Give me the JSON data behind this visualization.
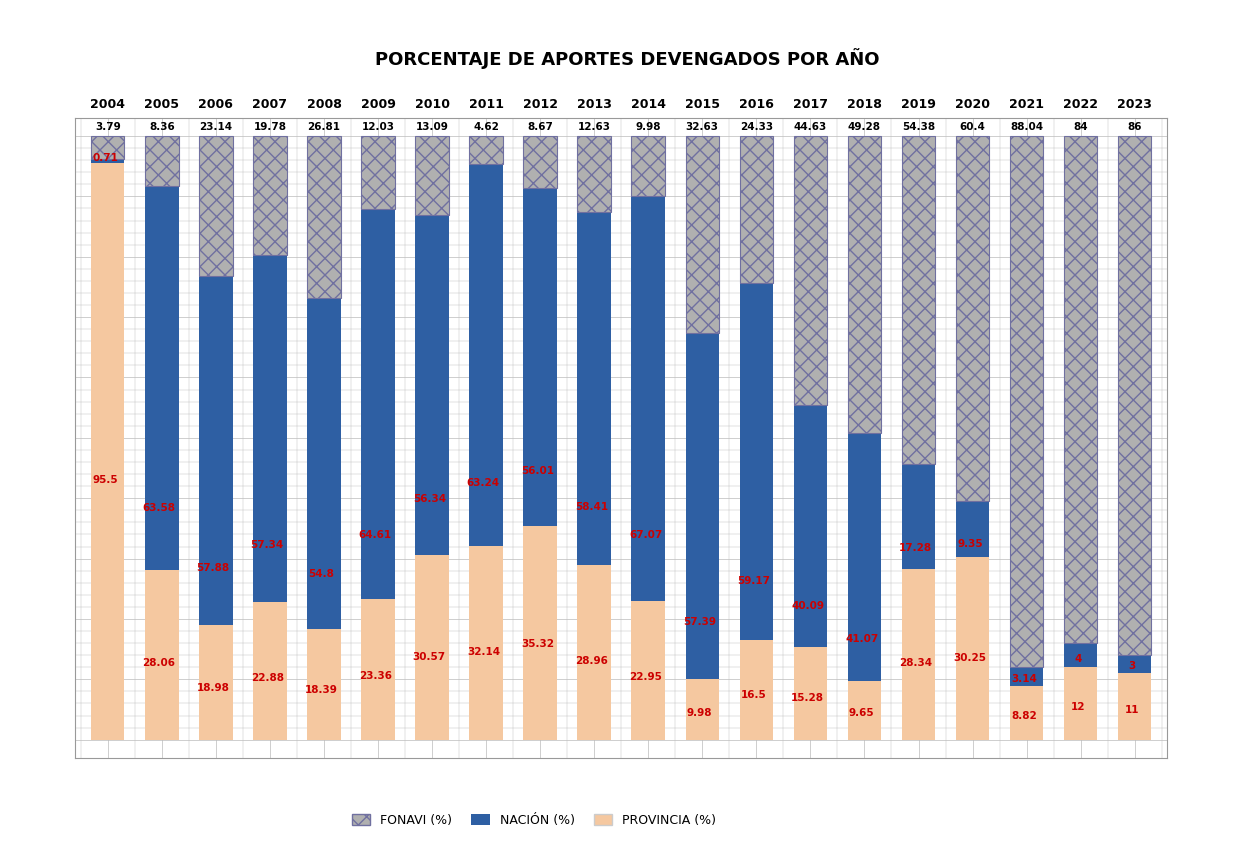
{
  "title": "PORCENTAJE DE APORTES DEVENGADOS POR AÑO",
  "years": [
    2004,
    2005,
    2006,
    2007,
    2008,
    2009,
    2010,
    2011,
    2012,
    2013,
    2014,
    2015,
    2016,
    2017,
    2018,
    2019,
    2020,
    2021,
    2022,
    2023
  ],
  "fonavi": [
    3.79,
    8.36,
    23.14,
    19.78,
    26.81,
    12.03,
    13.09,
    4.62,
    8.67,
    12.63,
    9.98,
    32.63,
    24.33,
    44.63,
    49.28,
    54.38,
    60.4,
    88.04,
    84.0,
    86.0
  ],
  "nacion": [
    0.71,
    63.58,
    57.88,
    57.34,
    54.8,
    64.61,
    56.34,
    63.24,
    56.01,
    58.41,
    67.07,
    57.39,
    59.17,
    40.09,
    41.07,
    17.28,
    9.35,
    3.14,
    4.0,
    3.0
  ],
  "provincia": [
    95.5,
    28.06,
    18.98,
    22.88,
    18.39,
    23.36,
    30.57,
    32.14,
    35.32,
    28.96,
    22.95,
    9.98,
    16.5,
    15.28,
    9.65,
    28.34,
    30.25,
    8.82,
    12.0,
    11.0
  ],
  "fonavi_color": "#b0b0b0",
  "nacion_color": "#2e5fa3",
  "provincia_color": "#f5c8a0",
  "fonavi_border": "#7070a0",
  "label_color_red": "#cc0000",
  "label_color_black": "#000000",
  "legend_labels": [
    "FONAVI (%)",
    "NACIÓN (%)",
    "PROVINCIA (%)"
  ],
  "bg_color": "#ffffff",
  "plot_bg": "#ffffff",
  "grid_color": "#bbbbbb"
}
